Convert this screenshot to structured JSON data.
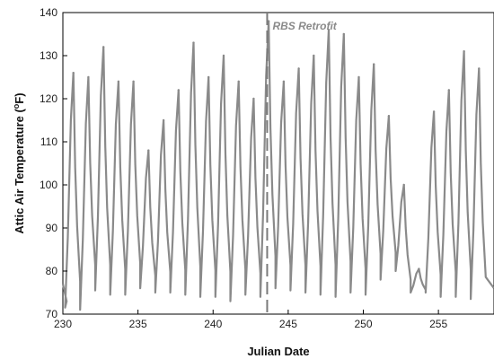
{
  "chart_data": {
    "type": "line",
    "title": "",
    "xlabel": "Julian Date",
    "ylabel": "Attic Air Temperature (°F)",
    "ylabel_main": "Attic Air Temperature (",
    "ylabel_sup": "o",
    "ylabel_tail": "F)",
    "xlim": [
      230,
      258.7
    ],
    "ylim": [
      70,
      140
    ],
    "xticks": [
      230,
      235,
      240,
      245,
      250,
      255
    ],
    "yticks": [
      70,
      80,
      90,
      100,
      110,
      120,
      130,
      140
    ],
    "grid": false,
    "series_color": "#8a8a8a",
    "annotation": {
      "label": "RBS Retrofit",
      "x": 243.6,
      "line_style": "dashed",
      "color": "#7a7a7a"
    },
    "daily_peaks": [
      {
        "day": 230.7,
        "min": 71.5,
        "max": 126
      },
      {
        "day": 231.7,
        "min": 71.0,
        "max": 125
      },
      {
        "day": 232.7,
        "min": 75.5,
        "max": 132
      },
      {
        "day": 233.7,
        "min": 74.5,
        "max": 124
      },
      {
        "day": 234.7,
        "min": 74.5,
        "max": 124
      },
      {
        "day": 235.7,
        "min": 76.0,
        "max": 108
      },
      {
        "day": 236.7,
        "min": 75.0,
        "max": 115
      },
      {
        "day": 237.7,
        "min": 75.0,
        "max": 122
      },
      {
        "day": 238.7,
        "min": 74.5,
        "max": 133
      },
      {
        "day": 239.7,
        "min": 74.0,
        "max": 125
      },
      {
        "day": 240.7,
        "min": 74.0,
        "max": 130
      },
      {
        "day": 241.7,
        "min": 73.0,
        "max": 124
      },
      {
        "day": 242.7,
        "min": 74.5,
        "max": 120
      },
      {
        "day": 243.7,
        "min": 74.0,
        "max": 138
      },
      {
        "day": 244.7,
        "min": 76.0,
        "max": 124
      },
      {
        "day": 245.7,
        "min": 75.5,
        "max": 127
      },
      {
        "day": 246.7,
        "min": 75.0,
        "max": 130
      },
      {
        "day": 247.7,
        "min": 74.5,
        "max": 136
      },
      {
        "day": 248.7,
        "min": 74.0,
        "max": 135
      },
      {
        "day": 249.7,
        "min": 75.0,
        "max": 125
      },
      {
        "day": 250.7,
        "min": 74.5,
        "max": 128
      },
      {
        "day": 251.7,
        "min": 78.0,
        "max": 116
      },
      {
        "day": 252.7,
        "min": 80.0,
        "max": 100
      },
      {
        "day": 253.7,
        "min": 75.0,
        "max": 80.5
      },
      {
        "day": 254.7,
        "min": 75.0,
        "max": 117
      },
      {
        "day": 255.7,
        "min": 74.0,
        "max": 122
      },
      {
        "day": 256.7,
        "min": 74.0,
        "max": 131
      },
      {
        "day": 257.7,
        "min": 73.5,
        "max": 127
      }
    ]
  }
}
